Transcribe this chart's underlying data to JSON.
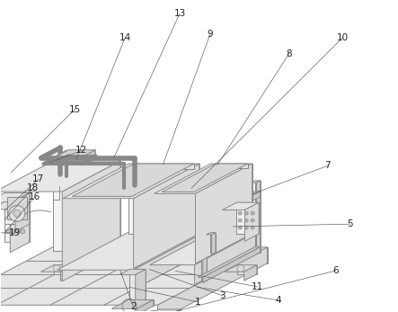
{
  "bg_color": "#ffffff",
  "lc": "#888888",
  "lw": 0.7,
  "fw": 4.43,
  "fh": 3.47,
  "dpi": 100,
  "label_fs": 7.5,
  "label_color": "#222222"
}
